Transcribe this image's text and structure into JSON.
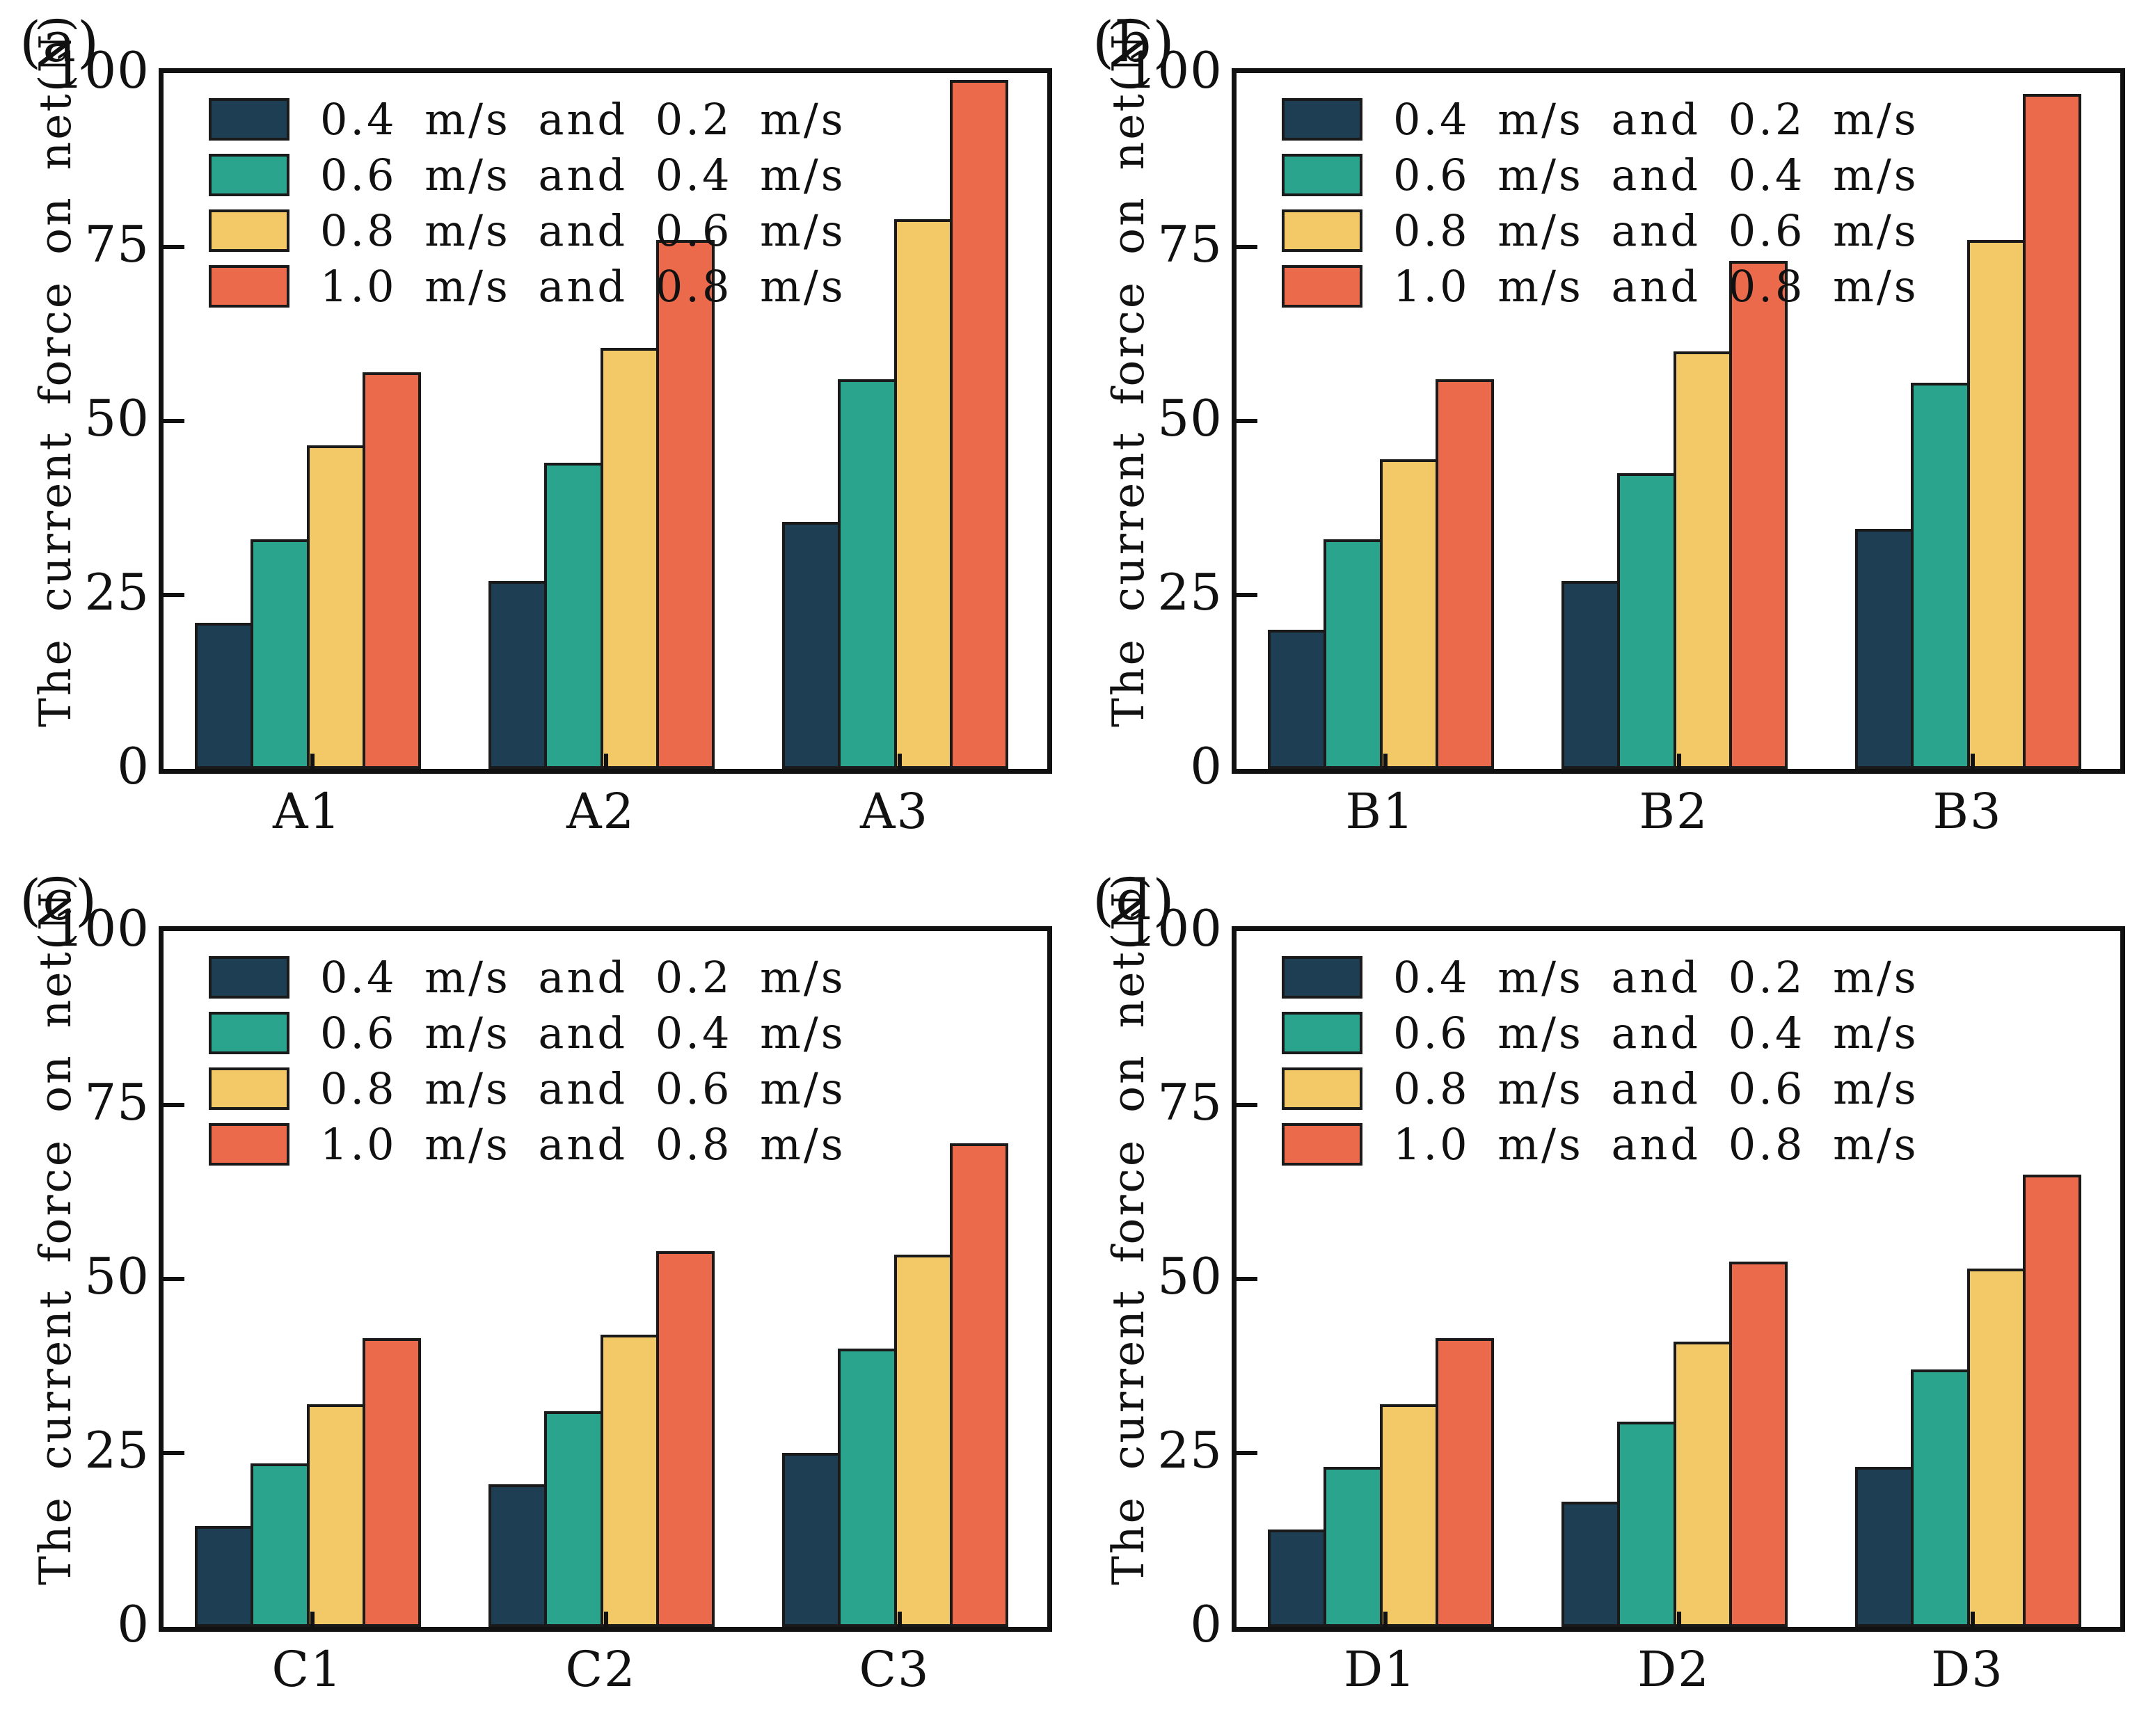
{
  "figure": {
    "ylabel": "The current force on net(N)",
    "yticks": [
      0,
      25,
      50,
      75,
      100
    ],
    "series_colors": [
      "#1d3e53",
      "#2aa48c",
      "#f3c967",
      "#eb6a4c"
    ],
    "bar_outline_color": "#1a1a1a",
    "legend_labels": [
      "0.4 m/s and 0.2 m/s",
      "0.6 m/s and 0.4 m/s",
      "0.8 m/s and 0.6 m/s",
      "1.0 m/s and 0.8 m/s"
    ]
  },
  "chart_data": [
    {
      "type": "bar",
      "panel_label": "(a)",
      "title": "",
      "xlabel": "",
      "ylabel": "The current force on net(N)",
      "ylim": [
        0,
        100
      ],
      "grid": false,
      "legend_position": "upper-left-inside",
      "categories": [
        "A1",
        "A2",
        "A3"
      ],
      "series": [
        {
          "name": "0.4 m/s and 0.2 m/s",
          "color": "#1d3e53",
          "values": [
            21,
            27,
            35.5
          ]
        },
        {
          "name": "0.6 m/s and 0.4 m/s",
          "color": "#2aa48c",
          "values": [
            33,
            44,
            56
          ]
        },
        {
          "name": "0.8 m/s and 0.6 m/s",
          "color": "#f3c967",
          "values": [
            46.5,
            60.5,
            79
          ]
        },
        {
          "name": "1.0 m/s and 0.8 m/s",
          "color": "#eb6a4c",
          "values": [
            57,
            76,
            99
          ]
        }
      ]
    },
    {
      "type": "bar",
      "panel_label": "(b)",
      "title": "",
      "xlabel": "",
      "ylabel": "The current force on net(N)",
      "ylim": [
        0,
        100
      ],
      "grid": false,
      "legend_position": "upper-left-inside",
      "categories": [
        "B1",
        "B2",
        "B3"
      ],
      "series": [
        {
          "name": "0.4 m/s and 0.2 m/s",
          "color": "#1d3e53",
          "values": [
            20,
            27,
            34.5
          ]
        },
        {
          "name": "0.6 m/s and 0.4 m/s",
          "color": "#2aa48c",
          "values": [
            33,
            42.5,
            55.5
          ]
        },
        {
          "name": "0.8 m/s and 0.6 m/s",
          "color": "#f3c967",
          "values": [
            44.5,
            60,
            76
          ]
        },
        {
          "name": "1.0 m/s and 0.8 m/s",
          "color": "#eb6a4c",
          "values": [
            56,
            73,
            97
          ]
        }
      ]
    },
    {
      "type": "bar",
      "panel_label": "(c)",
      "title": "",
      "xlabel": "",
      "ylabel": "The current force on net(N)",
      "ylim": [
        0,
        100
      ],
      "grid": false,
      "legend_position": "upper-left-inside",
      "categories": [
        "C1",
        "C2",
        "C3"
      ],
      "series": [
        {
          "name": "0.4 m/s and 0.2 m/s",
          "color": "#1d3e53",
          "values": [
            14.5,
            20.5,
            25
          ]
        },
        {
          "name": "0.6 m/s and 0.4 m/s",
          "color": "#2aa48c",
          "values": [
            23.5,
            31,
            40
          ]
        },
        {
          "name": "0.8 m/s and 0.6 m/s",
          "color": "#f3c967",
          "values": [
            32,
            42,
            53.5
          ]
        },
        {
          "name": "1.0 m/s and 0.8 m/s",
          "color": "#eb6a4c",
          "values": [
            41.5,
            54,
            69.5
          ]
        }
      ]
    },
    {
      "type": "bar",
      "panel_label": "(d)",
      "title": "",
      "xlabel": "",
      "ylabel": "The current force on net(N)",
      "ylim": [
        0,
        100
      ],
      "grid": false,
      "legend_position": "upper-left-inside",
      "categories": [
        "D1",
        "D2",
        "D3"
      ],
      "series": [
        {
          "name": "0.4 m/s and 0.2 m/s",
          "color": "#1d3e53",
          "values": [
            14,
            18,
            23
          ]
        },
        {
          "name": "0.6 m/s and 0.4 m/s",
          "color": "#2aa48c",
          "values": [
            23,
            29.5,
            37
          ]
        },
        {
          "name": "0.8 m/s and 0.6 m/s",
          "color": "#f3c967",
          "values": [
            32,
            41,
            51.5
          ]
        },
        {
          "name": "1.0 m/s and 0.8 m/s",
          "color": "#eb6a4c",
          "values": [
            41.5,
            52.5,
            65
          ]
        }
      ]
    }
  ]
}
